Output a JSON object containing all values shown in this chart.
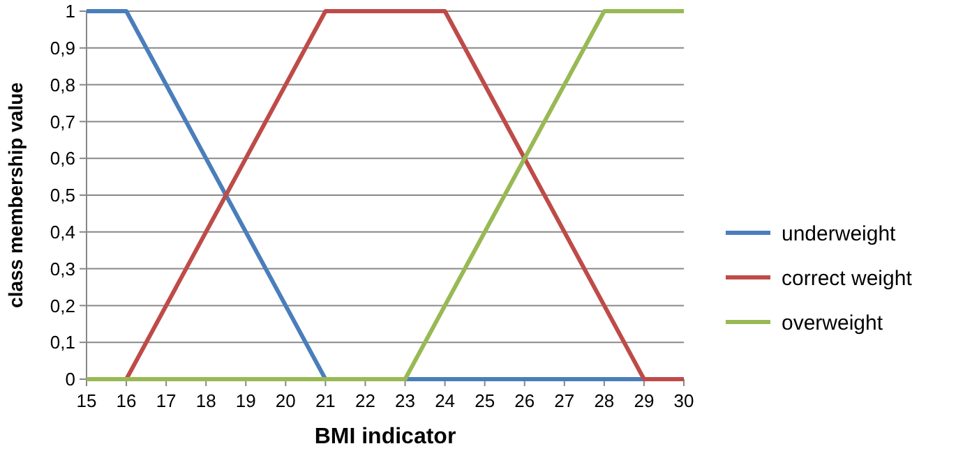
{
  "chart_data": {
    "type": "line",
    "xlabel": "BMI indicator",
    "ylabel": "class membership value",
    "xlim": [
      15,
      30
    ],
    "xticks": [
      15,
      16,
      17,
      18,
      19,
      20,
      21,
      22,
      23,
      24,
      25,
      26,
      27,
      28,
      29,
      30
    ],
    "ylim": [
      0,
      1
    ],
    "yticks": [
      0,
      {
        "value": 0.1,
        "label": "0,1"
      },
      {
        "value": 0.2,
        "label": "0,2"
      },
      {
        "value": 0.3,
        "label": "0,3"
      },
      {
        "value": 0.4,
        "label": "0,4"
      },
      {
        "value": 0.5,
        "label": "0,5"
      },
      {
        "value": 0.6,
        "label": "0,6"
      },
      {
        "value": 0.7,
        "label": "0,7"
      },
      {
        "value": 0.8,
        "label": "0,8"
      },
      {
        "value": 0.9,
        "label": "0,9"
      },
      1
    ],
    "grid": "y",
    "legend": "right",
    "marker": "none",
    "line_style": "solid",
    "series": [
      {
        "name": "underweight",
        "color": "#4a7ebb",
        "x": [
          15,
          16,
          21,
          30
        ],
        "values": [
          1,
          1,
          0,
          0
        ]
      },
      {
        "name": "correct weight",
        "color": "#be4b48",
        "x": [
          15,
          16,
          21,
          24,
          29,
          30
        ],
        "values": [
          0,
          0,
          1,
          1,
          0,
          0
        ]
      },
      {
        "name": "overweight",
        "color": "#98b954",
        "x": [
          15,
          23,
          28,
          30
        ],
        "values": [
          0,
          0,
          1,
          1
        ]
      }
    ]
  }
}
